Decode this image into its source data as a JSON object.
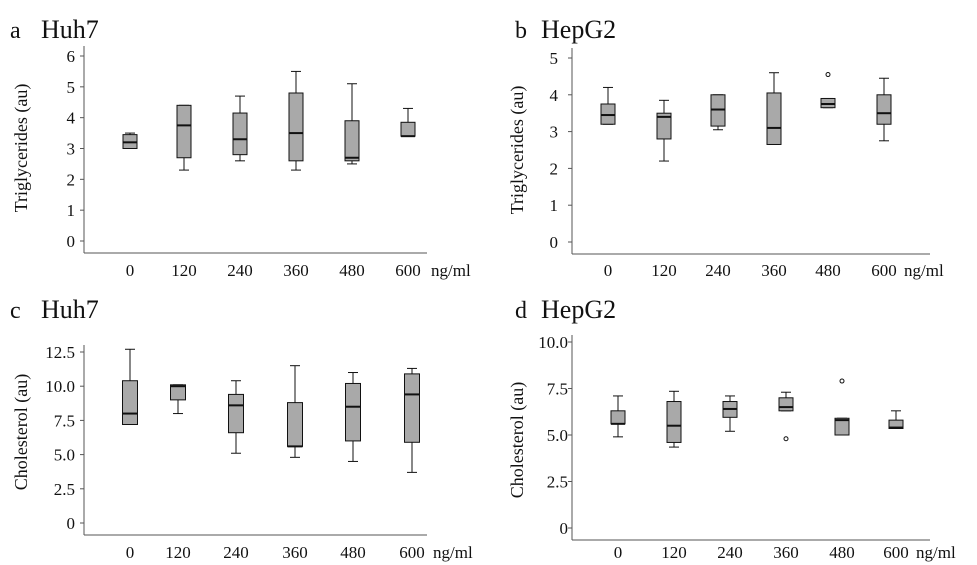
{
  "colors": {
    "box_fill": "#a9a9a9",
    "stroke": "#111111",
    "axis": "#555555"
  },
  "chart_data": [
    {
      "type": "boxplot",
      "panel_letter": "a",
      "title": "Huh7",
      "xlabel": "",
      "x_unit": "ng/ml",
      "ylabel": "Triglycerides (au)",
      "categories": [
        "0",
        "120",
        "240",
        "360",
        "480",
        "600"
      ],
      "ylim": [
        0,
        6
      ],
      "yticks": [
        "0",
        "1",
        "2",
        "3",
        "4",
        "5",
        "6"
      ],
      "boxes": [
        {
          "min": 3.0,
          "q1": 3.0,
          "median": 3.2,
          "q3": 3.45,
          "max": 3.5,
          "outliers": []
        },
        {
          "min": 2.3,
          "q1": 2.7,
          "median": 3.75,
          "q3": 4.4,
          "max": 4.4,
          "outliers": []
        },
        {
          "min": 2.6,
          "q1": 2.8,
          "median": 3.3,
          "q3": 4.15,
          "max": 4.7,
          "outliers": []
        },
        {
          "min": 2.3,
          "q1": 2.6,
          "median": 3.5,
          "q3": 4.8,
          "max": 5.5,
          "outliers": []
        },
        {
          "min": 2.5,
          "q1": 2.6,
          "median": 2.7,
          "q3": 3.9,
          "max": 5.1,
          "outliers": []
        },
        {
          "min": 3.4,
          "q1": 3.4,
          "median": 3.4,
          "q3": 3.85,
          "max": 4.3,
          "outliers": []
        }
      ]
    },
    {
      "type": "boxplot",
      "panel_letter": "b",
      "title": "HepG2",
      "xlabel": "",
      "x_unit": "ng/ml",
      "ylabel": "Triglycerides (au)",
      "categories": [
        "0",
        "120",
        "240",
        "360",
        "480",
        "600"
      ],
      "ylim": [
        0,
        5
      ],
      "yticks": [
        "0",
        "1",
        "2",
        "3",
        "4",
        "5"
      ],
      "boxes": [
        {
          "min": 3.2,
          "q1": 3.2,
          "median": 3.45,
          "q3": 3.75,
          "max": 4.2,
          "outliers": []
        },
        {
          "min": 2.2,
          "q1": 2.8,
          "median": 3.4,
          "q3": 3.5,
          "max": 3.85,
          "outliers": []
        },
        {
          "min": 3.05,
          "q1": 3.15,
          "median": 3.6,
          "q3": 4.0,
          "max": 4.0,
          "outliers": []
        },
        {
          "min": 2.65,
          "q1": 2.65,
          "median": 3.1,
          "q3": 4.05,
          "max": 4.6,
          "outliers": []
        },
        {
          "min": 3.65,
          "q1": 3.65,
          "median": 3.75,
          "q3": 3.9,
          "max": 3.9,
          "outliers": [
            4.55
          ]
        },
        {
          "min": 2.75,
          "q1": 3.2,
          "median": 3.5,
          "q3": 4.0,
          "max": 4.45,
          "outliers": []
        }
      ]
    },
    {
      "type": "boxplot",
      "panel_letter": "c",
      "title": "Huh7",
      "xlabel": "",
      "x_unit": "ng/ml",
      "ylabel": "Cholesterol (au)",
      "categories": [
        "0",
        "120",
        "240",
        "360",
        "480",
        "600"
      ],
      "ylim": [
        0,
        12.5
      ],
      "yticks": [
        "0",
        "2.5",
        "5.0",
        "7.5",
        "10.0",
        "12.5"
      ],
      "boxes": [
        {
          "min": 7.2,
          "q1": 7.2,
          "median": 8.0,
          "q3": 10.4,
          "max": 12.7,
          "outliers": []
        },
        {
          "min": 8.0,
          "q1": 9.0,
          "median": 10.0,
          "q3": 10.1,
          "max": 10.1,
          "outliers": []
        },
        {
          "min": 5.1,
          "q1": 6.6,
          "median": 8.6,
          "q3": 9.4,
          "max": 10.4,
          "outliers": []
        },
        {
          "min": 4.8,
          "q1": 5.6,
          "median": 5.6,
          "q3": 8.8,
          "max": 11.5,
          "outliers": []
        },
        {
          "min": 4.5,
          "q1": 6.0,
          "median": 8.5,
          "q3": 10.2,
          "max": 11.0,
          "outliers": []
        },
        {
          "min": 3.7,
          "q1": 5.9,
          "median": 9.4,
          "q3": 10.9,
          "max": 11.3,
          "outliers": []
        }
      ]
    },
    {
      "type": "boxplot",
      "panel_letter": "d",
      "title": "HepG2",
      "xlabel": "",
      "x_unit": "ng/ml",
      "ylabel": "Cholesterol (au)",
      "categories": [
        "0",
        "120",
        "240",
        "360",
        "480",
        "600"
      ],
      "ylim": [
        0,
        10.0
      ],
      "yticks": [
        "0",
        "2.5",
        "5.0",
        "7.5",
        "10.0"
      ],
      "boxes": [
        {
          "min": 4.9,
          "q1": 5.6,
          "median": 5.6,
          "q3": 6.3,
          "max": 7.1,
          "outliers": []
        },
        {
          "min": 4.35,
          "q1": 4.6,
          "median": 5.5,
          "q3": 6.8,
          "max": 7.35,
          "outliers": []
        },
        {
          "min": 5.2,
          "q1": 5.95,
          "median": 6.4,
          "q3": 6.8,
          "max": 7.1,
          "outliers": []
        },
        {
          "min": 6.3,
          "q1": 6.3,
          "median": 6.5,
          "q3": 7.0,
          "max": 7.3,
          "outliers": [
            4.8
          ]
        },
        {
          "min": 5.0,
          "q1": 5.0,
          "median": 5.8,
          "q3": 5.9,
          "max": 5.9,
          "outliers": [
            7.9
          ]
        },
        {
          "min": 5.35,
          "q1": 5.35,
          "median": 5.4,
          "q3": 5.8,
          "max": 6.3,
          "outliers": []
        }
      ]
    }
  ]
}
